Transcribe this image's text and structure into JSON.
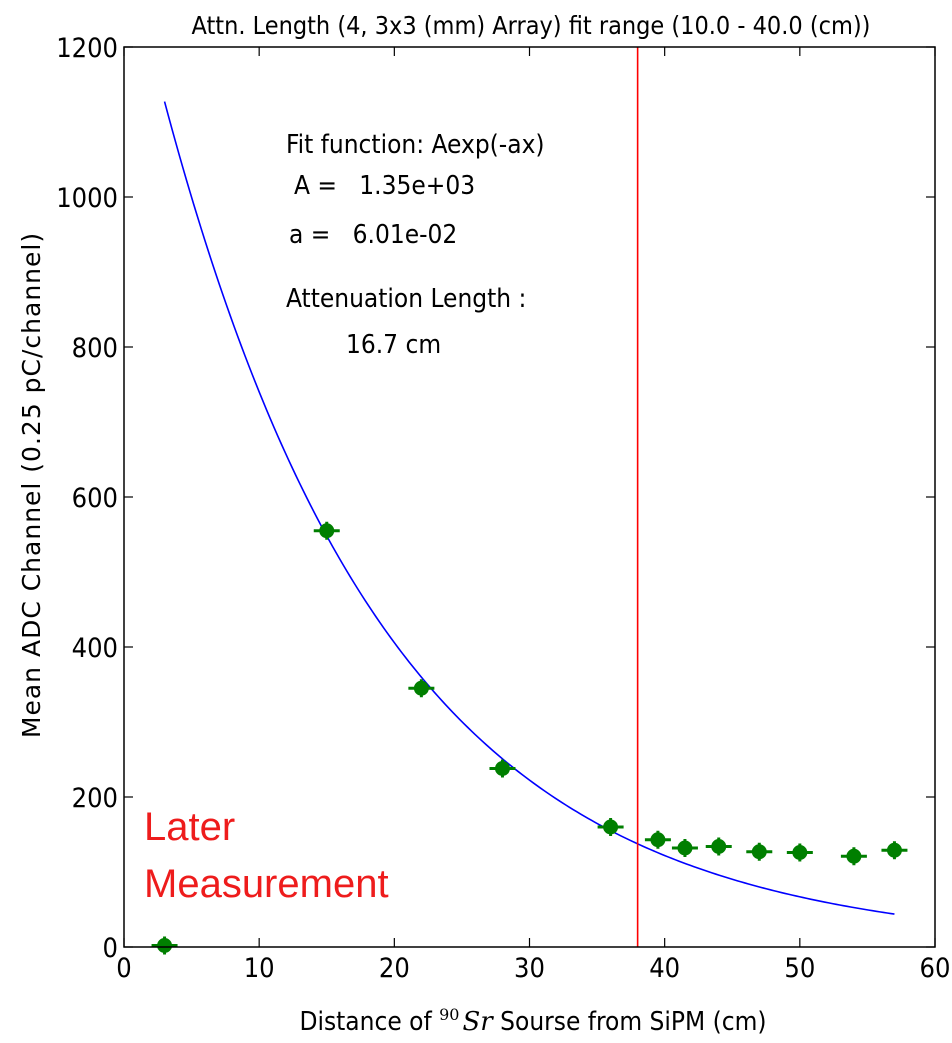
{
  "chart_data": {
    "type": "scatter",
    "title": "Attn. Length (4, 3x3 (mm) Array) fit range (10.0 - 40.0 (cm))",
    "xlabel_prefix": "Distance of ",
    "xlabel_isotope_mass": "90",
    "xlabel_isotope": "Sr",
    "xlabel_suffix": " Sourse from SiPM (cm)",
    "ylabel": "Mean ADC Channel (0.25 pC/channel)",
    "xlim": [
      0,
      60
    ],
    "ylim": [
      0,
      1200
    ],
    "xticks": [
      "0",
      "10",
      "20",
      "30",
      "40",
      "50",
      "60"
    ],
    "yticks": [
      "0",
      "200",
      "400",
      "600",
      "800",
      "1000",
      "1200"
    ],
    "grid": false,
    "points": [
      {
        "x": 3,
        "y": 2
      },
      {
        "x": 15,
        "y": 555
      },
      {
        "x": 22,
        "y": 345
      },
      {
        "x": 28,
        "y": 238
      },
      {
        "x": 36,
        "y": 160
      },
      {
        "x": 39.5,
        "y": 143
      },
      {
        "x": 41.5,
        "y": 132
      },
      {
        "x": 44,
        "y": 134
      },
      {
        "x": 47,
        "y": 127
      },
      {
        "x": 50,
        "y": 126
      },
      {
        "x": 54,
        "y": 121
      },
      {
        "x": 57,
        "y": 129
      }
    ],
    "point_color": "#007f00",
    "fit": {
      "A": 1350,
      "a": 0.0601,
      "x_range": [
        3,
        57
      ],
      "color": "#0000ff"
    },
    "vline": {
      "x": 38,
      "color": "#ff0000"
    },
    "annotations": {
      "fit_function": "Fit function: Aexp(-ax)",
      "A_label": "A =   1.35e+03",
      "a_label": "a =   6.01e-02",
      "atten_label": "Attenuation Length :",
      "atten_value": "16.7 cm"
    },
    "later_line1": "Later",
    "later_line2": "Measurement",
    "later_color": "#ee1c1c"
  }
}
